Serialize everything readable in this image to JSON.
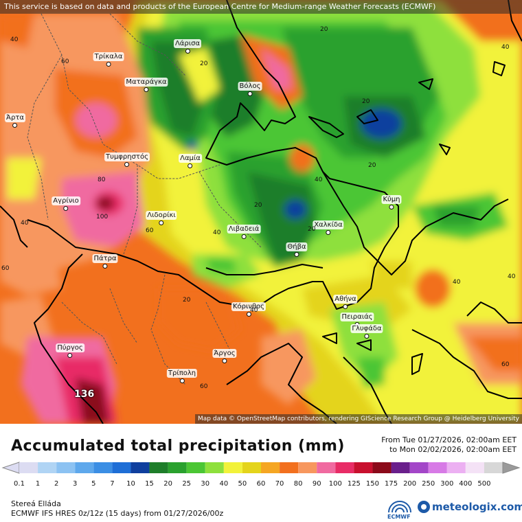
{
  "attribution": {
    "top": "This service is based on data and products of the European Centre for Medium-range Weather Forecasts (ECMWF)",
    "bottom": "Map data © OpenStreetMap contributors, rendering GIScience Research Group @ Heidelberg University"
  },
  "cities": [
    "Τρίκαλα",
    "Λάρισα",
    "Ματαράγκα",
    "Βόλος",
    "Άρτα",
    "Τυμφρηστός",
    "Λαμία",
    "Αγρίνιο",
    "Λιδορίκι",
    "Λιβαδειά",
    "Χαλκίδα",
    "Κύμη",
    "Θήβα",
    "Πάτρα",
    "Κόρινθος",
    "Αθήνα",
    "Πειραιάς",
    "Γλυφάδα",
    "Πύργος",
    "Άργος",
    "Τρίπολη"
  ],
  "isolines": [
    "20",
    "40",
    "60",
    "20",
    "20",
    "20",
    "40",
    "20",
    "80",
    "100",
    "60",
    "20",
    "40",
    "40",
    "40",
    "60",
    "20",
    "40",
    "60",
    "60",
    "40",
    "40"
  ],
  "max_value": "136",
  "legend": {
    "title": "Accumulated total precipitation (mm)",
    "from": "From Tue 01/27/2026, 02:00am EET",
    "to": "to Mon 02/02/2026, 02:00am EET",
    "ticks": [
      "0.1",
      "1",
      "2",
      "3",
      "5",
      "7",
      "10",
      "15",
      "20",
      "25",
      "30",
      "40",
      "50",
      "60",
      "70",
      "80",
      "90",
      "100",
      "125",
      "150",
      "175",
      "200",
      "250",
      "300",
      "400",
      "500"
    ],
    "colors": [
      "#dcdcf2",
      "#b0d4f4",
      "#8cc2f2",
      "#5ea8ec",
      "#3b8ee4",
      "#1e6ed6",
      "#0f3f9e",
      "#1e7e2a",
      "#2aa12e",
      "#4bc634",
      "#8ee03c",
      "#f2f23a",
      "#e4d41c",
      "#f5a623",
      "#f2701e",
      "#f7975e",
      "#f06aa0",
      "#e82c66",
      "#c8102e",
      "#8b0a1a",
      "#6a1f8c",
      "#a346c8",
      "#d77ae6",
      "#ecb0f2",
      "#f4e2f6",
      "#d7d7d7"
    ]
  },
  "footer": {
    "region": "Stereá Elláda",
    "model": "ECMWF IFS HRES 0z/12z (15 days) from 01/27/2026/00z",
    "ecmwf_label": "ECMWF",
    "brand": "meteologix.com"
  }
}
